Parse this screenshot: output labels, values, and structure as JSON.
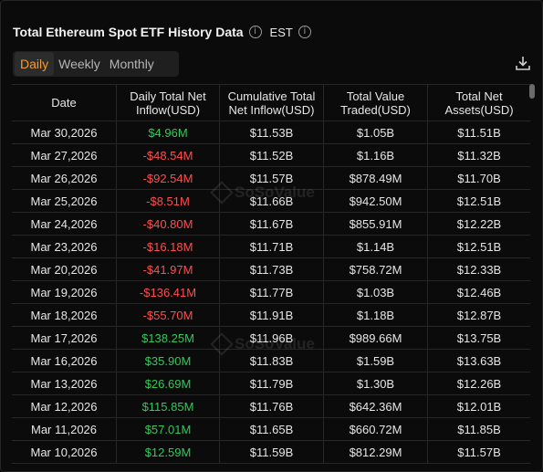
{
  "header": {
    "title": "Total Ethereum Spot ETF History Data",
    "timezone": "EST"
  },
  "tabs": [
    {
      "label": "Daily",
      "active": true
    },
    {
      "label": "Weekly",
      "active": false
    },
    {
      "label": "Monthly",
      "active": false
    }
  ],
  "watermark": "SoSoValue",
  "columns": [
    "Date",
    "Daily Total Net Inflow(USD)",
    "Cumulative Total Net Inflow(USD)",
    "Total Value Traded(USD)",
    "Total Net Assets(USD)"
  ],
  "rows": [
    {
      "date": "Mar 30,2026",
      "inflow": "$4.96M",
      "sign": "pos",
      "cumulative": "$11.53B",
      "traded": "$1.05B",
      "assets": "$11.51B"
    },
    {
      "date": "Mar 27,2026",
      "inflow": "-$48.54M",
      "sign": "neg",
      "cumulative": "$11.52B",
      "traded": "$1.16B",
      "assets": "$11.32B"
    },
    {
      "date": "Mar 26,2026",
      "inflow": "-$92.54M",
      "sign": "neg",
      "cumulative": "$11.57B",
      "traded": "$878.49M",
      "assets": "$11.70B"
    },
    {
      "date": "Mar 25,2026",
      "inflow": "-$8.51M",
      "sign": "neg",
      "cumulative": "$11.66B",
      "traded": "$942.50M",
      "assets": "$12.51B"
    },
    {
      "date": "Mar 24,2026",
      "inflow": "-$40.80M",
      "sign": "neg",
      "cumulative": "$11.67B",
      "traded": "$855.91M",
      "assets": "$12.22B"
    },
    {
      "date": "Mar 23,2026",
      "inflow": "-$16.18M",
      "sign": "neg",
      "cumulative": "$11.71B",
      "traded": "$1.14B",
      "assets": "$12.51B"
    },
    {
      "date": "Mar 20,2026",
      "inflow": "-$41.97M",
      "sign": "neg",
      "cumulative": "$11.73B",
      "traded": "$758.72M",
      "assets": "$12.33B"
    },
    {
      "date": "Mar 19,2026",
      "inflow": "-$136.41M",
      "sign": "neg",
      "cumulative": "$11.77B",
      "traded": "$1.03B",
      "assets": "$12.46B"
    },
    {
      "date": "Mar 18,2026",
      "inflow": "-$55.70M",
      "sign": "neg",
      "cumulative": "$11.91B",
      "traded": "$1.18B",
      "assets": "$12.87B"
    },
    {
      "date": "Mar 17,2026",
      "inflow": "$138.25M",
      "sign": "pos",
      "cumulative": "$11.96B",
      "traded": "$989.66M",
      "assets": "$13.75B"
    },
    {
      "date": "Mar 16,2026",
      "inflow": "$35.90M",
      "sign": "pos",
      "cumulative": "$11.83B",
      "traded": "$1.59B",
      "assets": "$13.63B"
    },
    {
      "date": "Mar 13,2026",
      "inflow": "$26.69M",
      "sign": "pos",
      "cumulative": "$11.79B",
      "traded": "$1.30B",
      "assets": "$12.26B"
    },
    {
      "date": "Mar 12,2026",
      "inflow": "$115.85M",
      "sign": "pos",
      "cumulative": "$11.76B",
      "traded": "$642.36M",
      "assets": "$12.01B"
    },
    {
      "date": "Mar 11,2026",
      "inflow": "$57.01M",
      "sign": "pos",
      "cumulative": "$11.65B",
      "traded": "$660.72M",
      "assets": "$11.85B"
    },
    {
      "date": "Mar 10,2026",
      "inflow": "$12.59M",
      "sign": "pos",
      "cumulative": "$11.59B",
      "traded": "$812.29M",
      "assets": "$11.57B"
    }
  ],
  "colors": {
    "accent": "#f59c2a",
    "positive": "#34c759",
    "negative": "#ff4d4d",
    "background": "#0b0b0b"
  },
  "icons": {
    "info": "info-icon",
    "download": "download-icon"
  }
}
